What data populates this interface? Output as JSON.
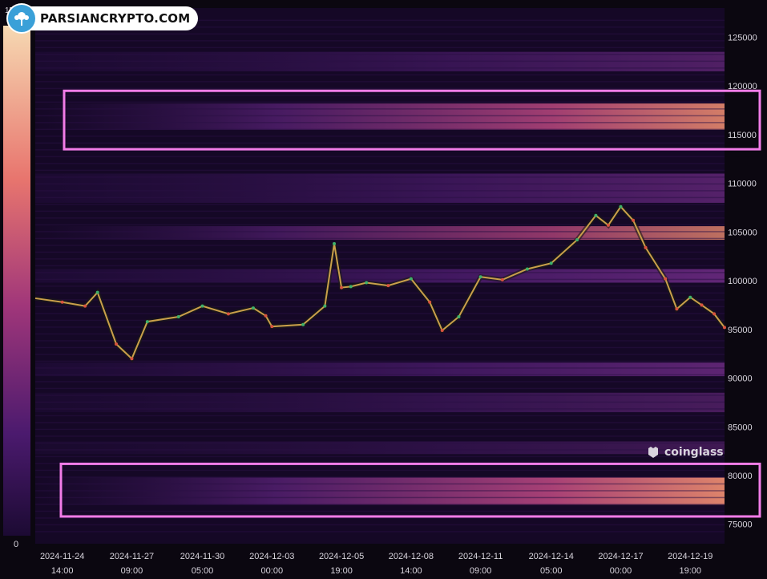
{
  "brand": {
    "name": "PARSIANCRYPTO.COM"
  },
  "watermark": {
    "name": "coinglass"
  },
  "chart_data": {
    "type": "heatmap",
    "title": "",
    "xlabel": "",
    "ylabel": "",
    "ylim": [
      73000,
      128000
    ],
    "y_ticks": [
      125000,
      120000,
      115000,
      110000,
      105000,
      100000,
      95000,
      90000,
      85000,
      80000,
      75000
    ],
    "x_ticks": [
      {
        "date": "2024-11-24",
        "time": "14:00"
      },
      {
        "date": "2024-11-27",
        "time": "09:00"
      },
      {
        "date": "2024-11-30",
        "time": "05:00"
      },
      {
        "date": "2024-12-03",
        "time": "00:00"
      },
      {
        "date": "2024-12-05",
        "time": "19:00"
      },
      {
        "date": "2024-12-08",
        "time": "14:00"
      },
      {
        "date": "2024-12-11",
        "time": "09:00"
      },
      {
        "date": "2024-12-14",
        "time": "05:00"
      },
      {
        "date": "2024-12-17",
        "time": "00:00"
      },
      {
        "date": "2024-12-19",
        "time": "19:00"
      }
    ],
    "colorbar": {
      "max_label": "15",
      "min_label": "0",
      "colors": [
        "#f6d9b2",
        "#e8756e",
        "#a0367a",
        "#4b1a6e",
        "#1c0a33"
      ]
    },
    "price": {
      "dates": [
        "2024-11-23 12:00",
        "2024-11-24 14:00",
        "2024-11-25 12:00",
        "2024-11-26 00:00",
        "2024-11-26 18:00",
        "2024-11-27 09:00",
        "2024-11-28 00:00",
        "2024-11-29 06:00",
        "2024-11-30 05:00",
        "2024-12-01 06:00",
        "2024-12-02 06:00",
        "2024-12-02 18:00",
        "2024-12-03 00:00",
        "2024-12-04 06:00",
        "2024-12-05 03:00",
        "2024-12-05 12:00",
        "2024-12-05 19:00",
        "2024-12-06 04:00",
        "2024-12-06 19:00",
        "2024-12-07 16:00",
        "2024-12-08 14:00",
        "2024-12-09 08:00",
        "2024-12-09 20:00",
        "2024-12-10 12:00",
        "2024-12-11 09:00",
        "2024-12-12 06:00",
        "2024-12-13 06:00",
        "2024-12-14 05:00",
        "2024-12-15 06:00",
        "2024-12-16 00:00",
        "2024-12-16 12:00",
        "2024-12-17 00:00",
        "2024-12-17 12:00",
        "2024-12-18 00:00",
        "2024-12-18 19:00",
        "2024-12-19 06:00",
        "2024-12-19 19:00",
        "2024-12-20 06:00",
        "2024-12-20 18:00",
        "2024-12-21 04:00"
      ],
      "values": [
        98200,
        97800,
        97400,
        98800,
        93500,
        92000,
        95800,
        96300,
        97400,
        96600,
        97200,
        96400,
        95300,
        95500,
        97400,
        103800,
        99300,
        99400,
        99800,
        99500,
        100200,
        97800,
        94900,
        96300,
        100400,
        100100,
        101200,
        101800,
        104200,
        106700,
        105700,
        107600,
        106200,
        103400,
        100200,
        97100,
        98300,
        97500,
        96600,
        95200
      ]
    },
    "highlighted_zones": [
      {
        "from": 113500,
        "to": 119500
      },
      {
        "from": 75800,
        "to": 81200
      }
    ]
  }
}
